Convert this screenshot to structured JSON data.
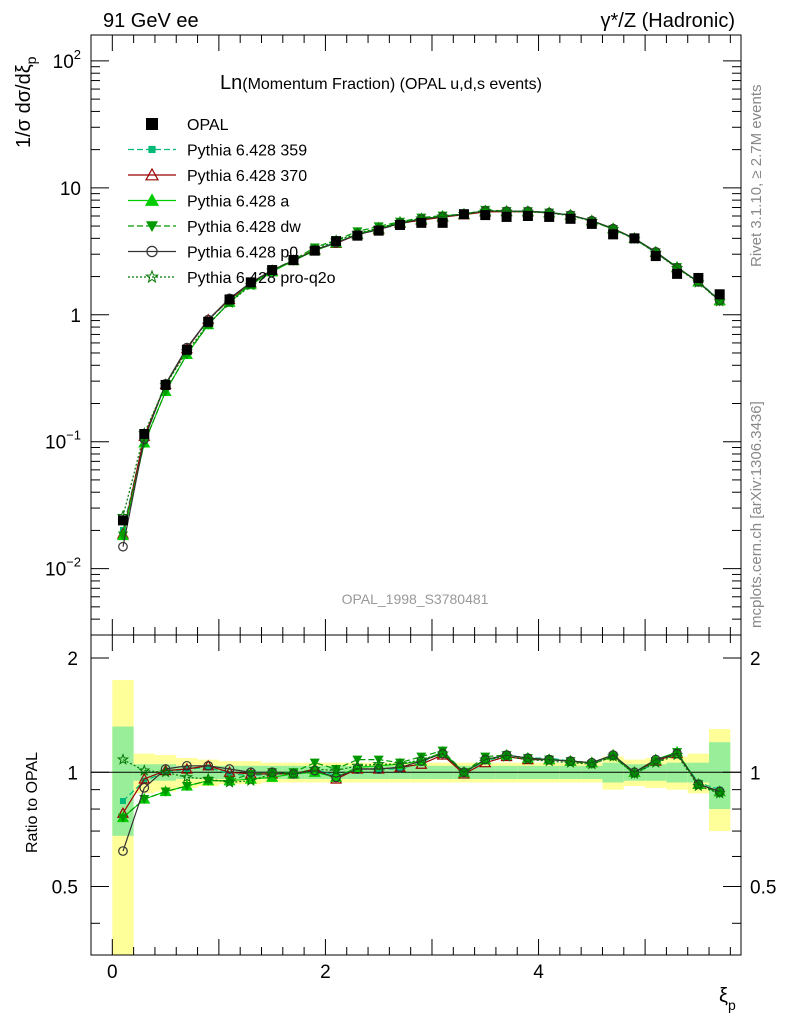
{
  "header": {
    "left": "91 GeV ee",
    "right": "γ*/Z (Hadronic)"
  },
  "side_labels": {
    "rivet": "Rivet 3.1.10, ≥ 2.7M events",
    "mcplots": "mcplots.cern.ch [arXiv:1306.3436]"
  },
  "chart_data": [
    {
      "type": "line",
      "title_main": "Ln",
      "title_rest": "(Momentum Fraction) (OPAL u,d,s events)",
      "watermark": "OPAL_1998_S3780481",
      "ylabel": "1/σ dσ/dξ_p",
      "yscale": "log",
      "ylim": [
        0.003,
        160
      ],
      "xlim": [
        -0.2,
        5.9
      ],
      "ytick_labels": [
        "10^-2",
        "10^-1",
        "1",
        "10",
        "10^2"
      ],
      "x": [
        0.1,
        0.3,
        0.5,
        0.7,
        0.9,
        1.1,
        1.3,
        1.5,
        1.7,
        1.9,
        2.1,
        2.3,
        2.5,
        2.7,
        2.9,
        3.1,
        3.3,
        3.5,
        3.7,
        3.9,
        4.1,
        4.3,
        4.5,
        4.7,
        4.9,
        5.1,
        5.3,
        5.5,
        5.7
      ],
      "legend": [
        {
          "name": "OPAL",
          "color": "#000000",
          "marker": "square",
          "dash": "none"
        },
        {
          "name": "Pythia 6.428 359",
          "color": "#00bb77",
          "marker": "square-small",
          "dash": "dashed"
        },
        {
          "name": "Pythia 6.428 370",
          "color": "#990000",
          "marker": "triangle-open",
          "dash": "solid"
        },
        {
          "name": "Pythia 6.428 a",
          "color": "#00cc00",
          "marker": "triangle",
          "dash": "solid"
        },
        {
          "name": "Pythia 6.428 dw",
          "color": "#009900",
          "marker": "triangle-down",
          "dash": "dashed"
        },
        {
          "name": "Pythia 6.428 p0",
          "color": "#333333",
          "marker": "circle-open",
          "dash": "solid"
        },
        {
          "name": "Pythia 6.428 pro-q2o",
          "color": "#007700",
          "marker": "star",
          "dash": "dotted"
        }
      ],
      "data": [
        0.024,
        0.115,
        0.28,
        0.53,
        0.88,
        1.32,
        1.8,
        2.25,
        2.7,
        3.2,
        3.8,
        4.2,
        4.6,
        5.1,
        5.3,
        5.3,
        6.2,
        6.1,
        5.9,
        6.0,
        5.9,
        5.7,
        5.2,
        4.3,
        4.0,
        2.9,
        2.1,
        1.95,
        1.45
      ],
      "series": [
        {
          "name": "Pythia 6.428 359",
          "ratio": [
            0.84,
            0.95,
            1.0,
            1.02,
            1.03,
            0.99,
            0.98,
            0.99,
            0.99,
            1.02,
            0.98,
            1.02,
            1.02,
            1.02,
            1.06,
            1.13,
            1.0,
            1.07,
            1.11,
            1.09,
            1.09,
            1.07,
            1.06,
            1.11,
            0.99,
            1.06,
            1.12,
            0.94,
            0.9
          ]
        },
        {
          "name": "Pythia 6.428 370",
          "ratio": [
            0.78,
            0.96,
            1.01,
            1.02,
            1.04,
            1.0,
            0.99,
            0.99,
            0.99,
            1.02,
            0.96,
            1.02,
            1.02,
            1.03,
            1.05,
            1.11,
            0.99,
            1.06,
            1.1,
            1.08,
            1.08,
            1.07,
            1.06,
            1.11,
            1.0,
            1.07,
            1.12,
            0.93,
            0.89
          ]
        },
        {
          "name": "Pythia 6.428 a",
          "ratio": [
            0.76,
            0.85,
            0.89,
            0.92,
            0.95,
            0.95,
            0.96,
            0.97,
            0.99,
            1.0,
            0.97,
            1.03,
            1.04,
            1.05,
            1.07,
            1.13,
            1.0,
            1.08,
            1.11,
            1.09,
            1.08,
            1.07,
            1.06,
            1.11,
            1.0,
            1.08,
            1.13,
            0.93,
            0.89
          ]
        },
        {
          "name": "Pythia 6.428 dw",
          "ratio": [
            0.76,
            0.85,
            0.89,
            0.92,
            0.95,
            0.95,
            0.99,
            1.0,
            1.0,
            1.06,
            1.02,
            1.08,
            1.08,
            1.06,
            1.1,
            1.14,
            1.0,
            1.1,
            1.11,
            1.09,
            1.08,
            1.07,
            1.05,
            1.1,
            0.99,
            1.07,
            1.13,
            0.93,
            0.88
          ]
        },
        {
          "name": "Pythia 6.428 p0",
          "ratio": [
            0.62,
            0.91,
            1.02,
            1.04,
            1.04,
            1.02,
            1.0,
            1.0,
            0.99,
            1.01,
            0.97,
            1.02,
            1.02,
            1.03,
            1.07,
            1.12,
            1.0,
            1.08,
            1.11,
            1.09,
            1.08,
            1.07,
            1.06,
            1.11,
            1.0,
            1.08,
            1.12,
            0.93,
            0.89
          ]
        },
        {
          "name": "Pythia 6.428 pro-q2o",
          "ratio": [
            1.08,
            1.01,
            1.0,
            0.97,
            0.96,
            0.94,
            0.95,
            0.99,
            0.99,
            1.02,
            1.01,
            1.04,
            1.05,
            1.05,
            1.08,
            1.12,
            1.0,
            1.08,
            1.1,
            1.08,
            1.07,
            1.06,
            1.05,
            1.1,
            0.99,
            1.06,
            1.11,
            0.92,
            0.88
          ]
        }
      ]
    },
    {
      "type": "line",
      "ylabel": "Ratio to OPAL",
      "xlabel": "ξ_p",
      "yscale": "log",
      "ylim": [
        0.33,
        2.3
      ],
      "xlim": [
        -0.2,
        5.9
      ],
      "reference": 1,
      "yticks": [
        0.5,
        1,
        2
      ],
      "xticks": [
        0,
        2,
        4
      ],
      "band_stat": [
        0.32,
        0.05,
        0.05,
        0.04,
        0.04,
        0.04,
        0.04,
        0.04,
        0.04,
        0.04,
        0.04,
        0.04,
        0.04,
        0.04,
        0.04,
        0.04,
        0.04,
        0.04,
        0.04,
        0.04,
        0.04,
        0.04,
        0.04,
        0.06,
        0.05,
        0.05,
        0.06,
        0.06,
        0.2
      ],
      "band_total": [
        0.75,
        0.12,
        0.11,
        0.09,
        0.08,
        0.07,
        0.07,
        0.06,
        0.06,
        0.06,
        0.06,
        0.06,
        0.06,
        0.06,
        0.06,
        0.06,
        0.06,
        0.06,
        0.06,
        0.06,
        0.06,
        0.06,
        0.06,
        0.1,
        0.08,
        0.09,
        0.1,
        0.12,
        0.3
      ]
    }
  ]
}
